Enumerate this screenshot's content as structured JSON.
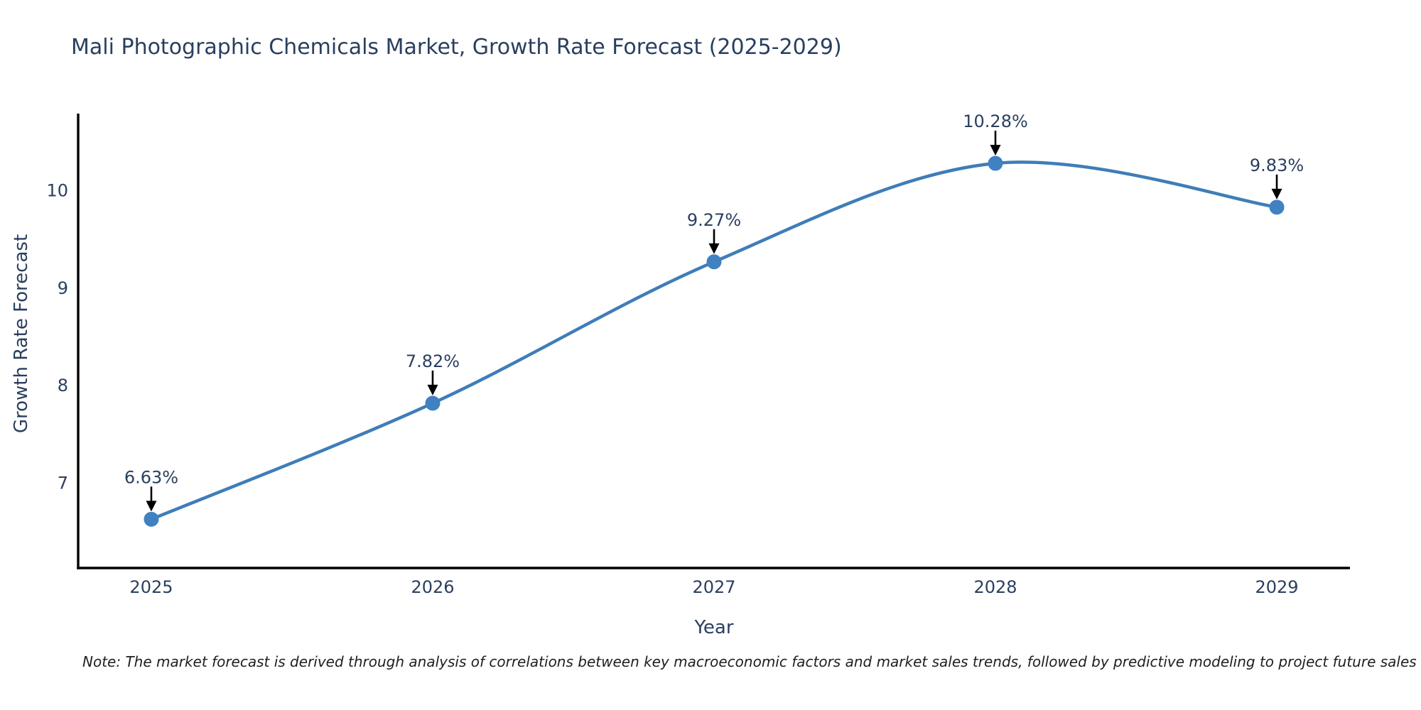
{
  "note": "Note: The market forecast is derived through analysis of correlations between key macroeconomic factors and market sales trends, followed by predictive modeling to project future sales",
  "chart_data": {
    "type": "line",
    "title": "Mali Photographic Chemicals Market, Growth Rate Forecast (2025-2029)",
    "xlabel": "Year",
    "ylabel": "Growth Rate Forecast",
    "categories": [
      2025,
      2026,
      2027,
      2028,
      2029
    ],
    "values": [
      6.63,
      7.82,
      9.27,
      10.28,
      9.83
    ],
    "point_labels": [
      "6.63%",
      "7.82%",
      "9.27%",
      "10.28%",
      "9.83%"
    ],
    "yticks": [
      7,
      8,
      9,
      10
    ],
    "ylim": [
      6.13,
      10.79
    ],
    "xlim": [
      2024.74,
      2029.26
    ],
    "line_shape": "spline",
    "grid": false,
    "legend_position": "none",
    "colors": {
      "line": "#3f7db8",
      "marker": "#4081c2",
      "text": "#2a3f5f",
      "axis": "#000000",
      "annotation_arrow": "#000000",
      "background": "#ffffff"
    }
  }
}
